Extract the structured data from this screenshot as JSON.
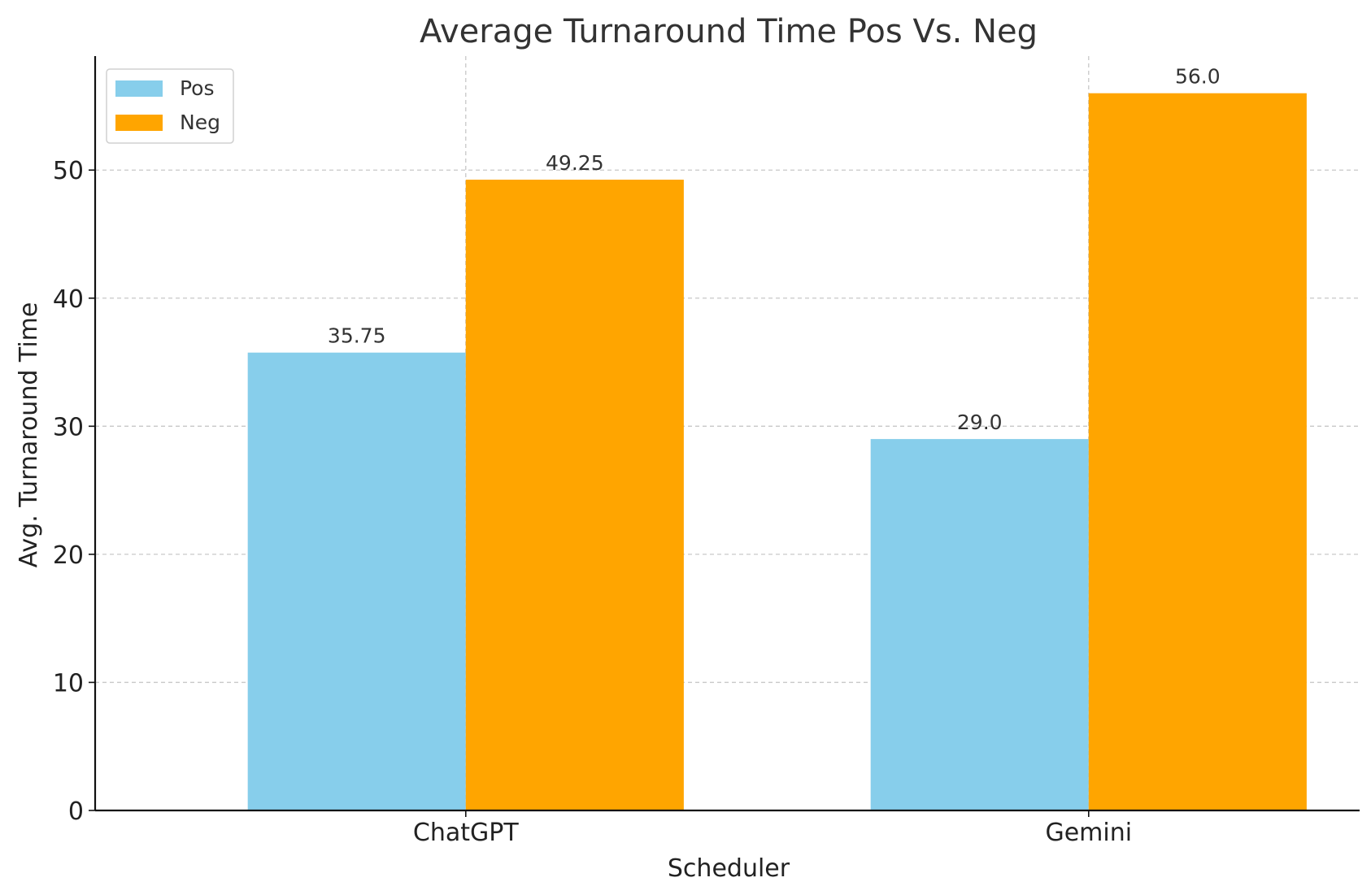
{
  "chart_data": {
    "type": "bar",
    "title": "Average Turnaround Time Pos Vs. Neg",
    "xlabel": "Scheduler",
    "ylabel": "Avg. Turnaround Time",
    "categories": [
      "ChatGPT",
      "Gemini"
    ],
    "series": [
      {
        "name": "Pos",
        "color": "#87CEEB",
        "values": [
          35.75,
          29.0
        ],
        "labels": [
          "35.75",
          "29.0"
        ]
      },
      {
        "name": "Neg",
        "color": "#FFA500",
        "values": [
          49.25,
          56.0
        ],
        "labels": [
          "49.25",
          "56.0"
        ]
      }
    ],
    "ylim": [
      0,
      58.9
    ],
    "yticks": [
      0,
      10,
      20,
      30,
      40,
      50
    ],
    "grid": true,
    "legend": "top-left"
  }
}
